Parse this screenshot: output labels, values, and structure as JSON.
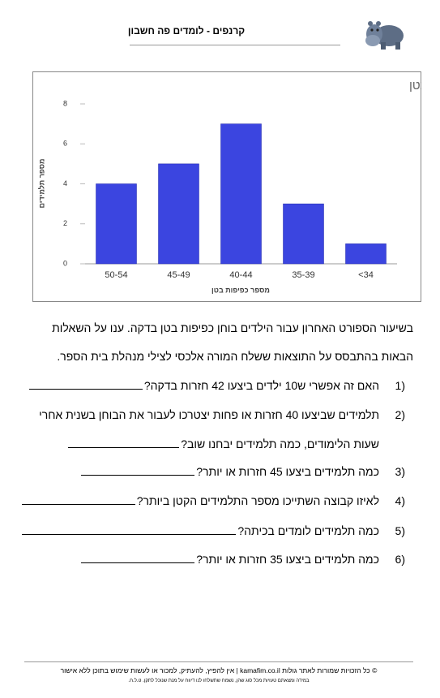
{
  "header": {
    "title": "קרנפים - לומדים פה חשבון"
  },
  "chart_data": {
    "type": "bar",
    "title": "מספר תלמידים לעומת מספר כפיפות בטן",
    "x_label": "מספר כפיפות בטן",
    "y_label": "מספר תלמידים",
    "categories": [
      "50-54",
      "45-49",
      "40-44",
      "35-39",
      "<34"
    ],
    "values": [
      4,
      5,
      7,
      3,
      1
    ],
    "color": "#3b45e0",
    "ylim": [
      0,
      8
    ],
    "yticks": [
      0,
      2,
      4,
      6,
      8
    ],
    "grid": false
  },
  "intro": [
    "בשיעור הספורט האחרון עבור הילדים בוחן כפיפות בטן בדקה. ענו על השאלות",
    "הבאות בהתבסס על התוצאות ששלח המורה אלכסי לצילי מנהלת בית הספר."
  ],
  "questions": [
    {
      "number": "1)",
      "lines": [
        "האם זה אפשרי ש10 ילדים ביצעו 42 חזרות בדקה?"
      ]
    },
    {
      "number": "2)",
      "lines": [
        "תלמידים שביצעו 40 חזרות או פחות יצטרכו לעבור את הבוחן בשנית אחרי",
        "שעות הלימודים, כמה תלמידים יבחנו שוב?"
      ]
    },
    {
      "number": "3)",
      "lines": [
        "כמה תלמידים ביצעו 45 חזרות או יותר?"
      ]
    },
    {
      "number": "4)",
      "lines": [
        "לאיזו קבוצה השתייכו מספר התלמידים הקטן ביותר?"
      ]
    },
    {
      "number": "5)",
      "lines": [
        "כמה תלמידים לומדים בכיתה?"
      ]
    },
    {
      "number": "6)",
      "lines": [
        "כמה תלמידים ביצעו 35 חזרות או יותר?"
      ]
    }
  ],
  "footer": {
    "copyright": "© כל הזכויות שמורות לאתר גולות kamafim.co.il | אין להפיץ, להעתיק, למכור או לעשות שימוש בתוכן ללא אישור",
    "note": "במידה ומצאתם טעויות מכל סוג שהן, נשמח שתשלחו לנו דיווח על מנת שנוכל לתקן. ט.ל.ח."
  }
}
